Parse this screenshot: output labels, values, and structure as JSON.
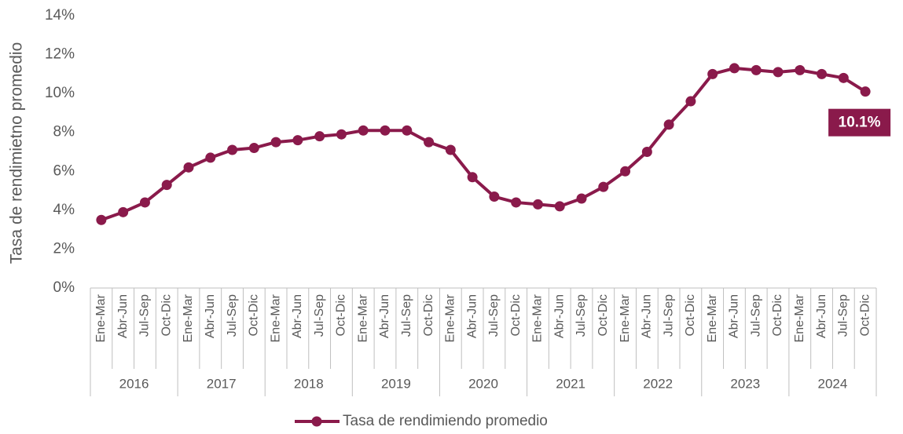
{
  "chart_data": {
    "type": "line",
    "y_label": "Tasa de rendimietno promedio",
    "categories": [
      "Ene-Mar",
      "Abr-Jun",
      "Jul-Sep",
      "Oct-Dic",
      "Ene-Mar",
      "Abr-Jun",
      "Jul-Sep",
      "Oct-Dic",
      "Ene-Mar",
      "Abr-Jun",
      "Jul-Sep",
      "Oct-Dic",
      "Ene-Mar",
      "Abr-Jun",
      "Jul-Sep",
      "Oct-Dic",
      "Ene-Mar",
      "Abr-Jun",
      "Jul-Sep",
      "Oct-Dic",
      "Ene-Mar",
      "Abr-Jun",
      "Jul-Sep",
      "Oct-Dic",
      "Ene-Mar",
      "Abr-Jun",
      "Jul-Sep",
      "Oct-Dic",
      "Ene-Mar",
      "Abr-Jun",
      "Jul-Sep",
      "Oct-Dic",
      "Ene-Mar",
      "Abr-Jun",
      "Jul-Sep",
      "Oct-Dic"
    ],
    "groups": [
      "2016",
      "2017",
      "2018",
      "2019",
      "2020",
      "2021",
      "2022",
      "2023",
      "2024"
    ],
    "series": [
      {
        "name": "Tasa de rendimiendo promedio",
        "color": "#8a1a4b",
        "values": [
          3.5,
          3.9,
          4.4,
          5.3,
          6.2,
          6.7,
          7.1,
          7.2,
          7.5,
          7.6,
          7.8,
          7.9,
          8.1,
          8.1,
          8.1,
          7.5,
          7.1,
          5.7,
          4.7,
          4.4,
          4.3,
          4.2,
          4.6,
          5.2,
          6.0,
          7.0,
          8.4,
          9.6,
          11.0,
          11.3,
          11.2,
          11.1,
          11.2,
          11.0,
          10.8,
          10.1
        ],
        "value_labels": [
          null,
          null,
          null,
          null,
          null,
          null,
          null,
          null,
          null,
          null,
          null,
          null,
          null,
          null,
          null,
          null,
          null,
          null,
          null,
          null,
          null,
          null,
          null,
          null,
          null,
          null,
          null,
          null,
          null,
          null,
          null,
          null,
          null,
          null,
          null,
          "10.1%"
        ]
      }
    ],
    "ylim": [
      0,
      14
    ],
    "yticks": [
      {
        "value": 0,
        "label": "0%"
      },
      {
        "value": 2,
        "label": "2%"
      },
      {
        "value": 4,
        "label": "4%"
      },
      {
        "value": 6,
        "label": "6%"
      },
      {
        "value": 8,
        "label": "8%"
      },
      {
        "value": 10,
        "label": "10%"
      },
      {
        "value": 12,
        "label": "12%"
      },
      {
        "value": 14,
        "label": "14%"
      }
    ],
    "grid": false,
    "legend": "bottom"
  }
}
